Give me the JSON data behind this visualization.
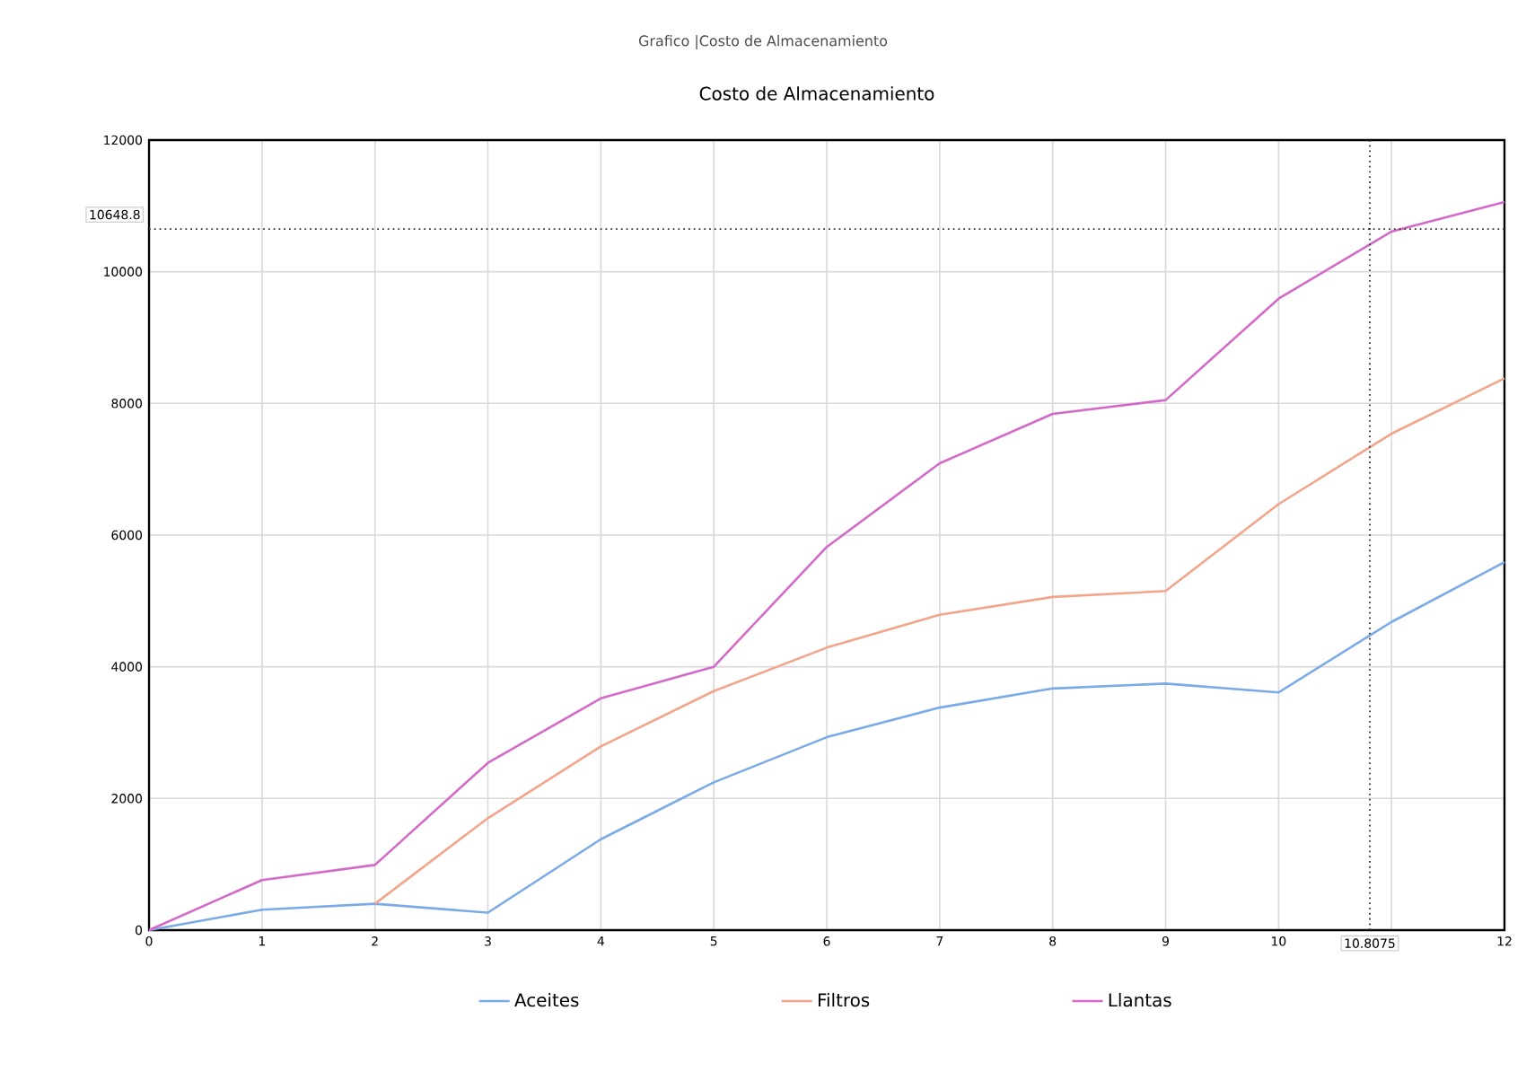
{
  "chart_data": {
    "type": "line",
    "title": "Costo de Almacenamiento",
    "annotations": [
      "Grafico |Costo de Almacenamiento"
    ],
    "x": [
      0,
      1,
      2,
      3,
      4,
      5,
      6,
      7,
      8,
      9,
      10,
      11,
      12
    ],
    "series": [
      {
        "name": "Aceites",
        "color": "#7aaae8",
        "values": [
          0,
          310,
          400,
          265,
          1380,
          2245,
          2930,
          3380,
          3670,
          3745,
          3610,
          4680,
          5590
        ]
      },
      {
        "name": "Filtros",
        "color": "#f2a58a",
        "values": [
          null,
          null,
          400,
          1700,
          2790,
          3630,
          4290,
          4790,
          5060,
          5150,
          6470,
          7540,
          8380
        ]
      },
      {
        "name": "Llantas",
        "color": "#d46ac8",
        "values": [
          0,
          760,
          990,
          2540,
          3520,
          4000,
          5820,
          7090,
          7840,
          8050,
          9590,
          10610,
          11060
        ]
      }
    ],
    "xlim": [
      0,
      12
    ],
    "ylim": [
      0,
      12000
    ],
    "xticks": [
      0,
      1,
      2,
      3,
      4,
      5,
      6,
      7,
      8,
      9,
      10,
      {
        "value": 11,
        "label": null
      },
      12
    ],
    "yticks": [
      0,
      2000,
      4000,
      6000,
      8000,
      10000,
      12000
    ],
    "ref_lines": [
      {
        "axis": "x",
        "value": 10.8075,
        "label": "10.8075",
        "line_style": "dotted",
        "color": "#333333"
      },
      {
        "axis": "y",
        "value": 10648.8,
        "label": "10648.8",
        "line_style": "dotted",
        "color": "#333333"
      }
    ],
    "grid": true,
    "legend": "bottom",
    "marker": "none",
    "line_style": "solid"
  }
}
